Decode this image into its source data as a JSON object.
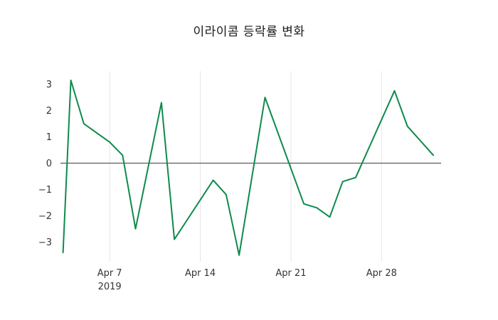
{
  "title": "이라이콤 등락률 변화",
  "chart_data": {
    "type": "line",
    "title": "이라이콤 등락률 변화",
    "series_name": "등락률",
    "line_color": "#0e8a4c",
    "zero_line_color": "#3a3a3a",
    "grid_color": "#e6e6e6",
    "x_unit": "day offset in April 2019 (32 = May 2)",
    "x_range": [
      3.2,
      32.6
    ],
    "y_range": [
      -3.75,
      3.5
    ],
    "y_ticks": [
      3,
      2,
      1,
      0,
      -1,
      -2,
      -3
    ],
    "x_ticks": [
      {
        "pos": 7,
        "label": "Apr 7",
        "sublabel": "2019"
      },
      {
        "pos": 14,
        "label": "Apr 14",
        "sublabel": ""
      },
      {
        "pos": 21,
        "label": "Apr 21",
        "sublabel": ""
      },
      {
        "pos": 28,
        "label": "Apr 28",
        "sublabel": ""
      }
    ],
    "points": [
      [
        3.4,
        -3.4
      ],
      [
        4,
        3.15
      ],
      [
        5,
        1.5
      ],
      [
        6,
        1.15
      ],
      [
        7,
        0.8
      ],
      [
        8,
        0.3
      ],
      [
        9,
        -2.5
      ],
      [
        11,
        2.3
      ],
      [
        12,
        -2.9
      ],
      [
        15,
        -0.65
      ],
      [
        16,
        -1.2
      ],
      [
        17,
        -3.5
      ],
      [
        19,
        2.5
      ],
      [
        22,
        -1.55
      ],
      [
        23,
        -1.7
      ],
      [
        24,
        -2.05
      ],
      [
        25,
        -0.7
      ],
      [
        26,
        -0.55
      ],
      [
        29,
        2.75
      ],
      [
        30,
        1.4
      ],
      [
        32,
        0.3
      ]
    ]
  }
}
